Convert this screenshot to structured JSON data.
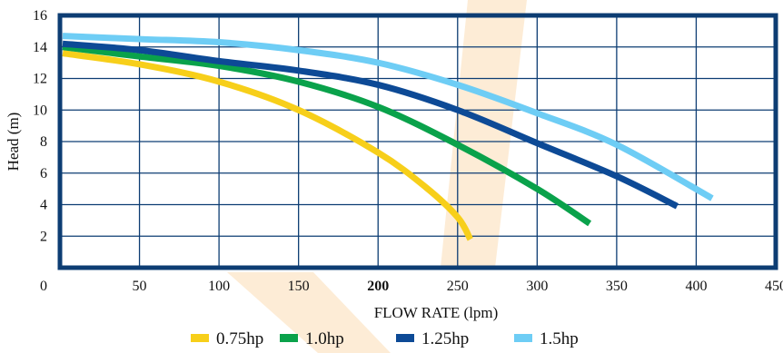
{
  "chart_data": {
    "type": "line",
    "title": "",
    "xlabel": "FLOW RATE (lpm)",
    "ylabel": "Head (m)",
    "xlim": [
      0,
      450
    ],
    "ylim": [
      0,
      16
    ],
    "xticks": [
      "0",
      "50",
      "100",
      "150",
      "200",
      "250",
      "300",
      "350",
      "400",
      "450"
    ],
    "yticks": [
      "2",
      "4",
      "6",
      "8",
      "10",
      "12",
      "14",
      "16"
    ],
    "highlight_xtick": "200",
    "grid": true,
    "legend_position": "bottom",
    "series": [
      {
        "name": "0.75hp",
        "color": "#f7cf1a",
        "x": [
          0,
          50,
          100,
          150,
          200,
          230,
          250,
          258
        ],
        "y": [
          13.6,
          12.9,
          11.8,
          10.0,
          7.3,
          5.1,
          3.2,
          1.8
        ]
      },
      {
        "name": "1.0hp",
        "color": "#0aa24b",
        "x": [
          0,
          50,
          100,
          150,
          200,
          250,
          300,
          333
        ],
        "y": [
          14.0,
          13.4,
          12.8,
          11.8,
          10.2,
          7.8,
          5.0,
          2.8
        ]
      },
      {
        "name": "1.25hp",
        "color": "#0d4a96",
        "x": [
          0,
          50,
          100,
          150,
          200,
          250,
          300,
          350,
          388
        ],
        "y": [
          14.2,
          13.8,
          13.1,
          12.5,
          11.6,
          10.0,
          7.9,
          5.8,
          3.9
        ]
      },
      {
        "name": "1.5hp",
        "color": "#6ecdf5",
        "x": [
          0,
          50,
          100,
          150,
          200,
          250,
          300,
          350,
          410
        ],
        "y": [
          14.7,
          14.5,
          14.3,
          13.8,
          13.0,
          11.6,
          9.8,
          7.8,
          4.4
        ]
      }
    ]
  }
}
